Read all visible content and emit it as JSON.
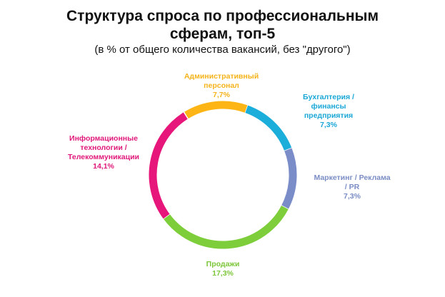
{
  "chart_data": {
    "type": "pie",
    "subtype": "donut",
    "title": "Структура  спроса по профессиональным сферам, топ-5",
    "subtitle": "(в % от общего количества вакансий, без \"другого\")",
    "unit": "%",
    "categories": [
      "Административный персонал",
      "Бухгалтерия / финансы предприятия",
      "Маркетинг / Реклама / PR",
      "Продажи",
      "Информационные технологии / Телекоммуникации"
    ],
    "values": [
      7.7,
      7.3,
      7.3,
      17.3,
      14.1
    ],
    "value_labels": [
      "7,7%",
      "7,3%",
      "7,3%",
      "17,3%",
      "14,1%"
    ],
    "colors": [
      "#FDB515",
      "#1BAEDB",
      "#7B8DC8",
      "#7DCE3A",
      "#E6167B"
    ],
    "legend": "none (data labels next to segments)"
  },
  "header": {
    "title_line1": "Структура  спроса по профессиональным",
    "title_line2": "сферам, топ-5",
    "subtitle": "(в % от общего количества вакансий, без \"другого\")"
  },
  "labels": {
    "admin": {
      "line1": "Административный",
      "line2": "персонал",
      "value": "7,7%",
      "color": "#F5B31A"
    },
    "accounting": {
      "line1": "Бухгалтерия /",
      "line2": "финансы",
      "line3": "предприятия",
      "value": "7,3%",
      "color": "#1AA7D6"
    },
    "marketing": {
      "line1": "Маркетинг / Реклама",
      "line2": "/ PR",
      "value": "7,3%",
      "color": "#7A8CC4"
    },
    "sales": {
      "line1": "Продажи",
      "value": "17,3%",
      "color": "#7CC63A"
    },
    "it": {
      "line1": "Информационные",
      "line2": "технологии /",
      "line3": "Телекоммуникации",
      "value": "14,1%",
      "color": "#E0187A"
    }
  }
}
